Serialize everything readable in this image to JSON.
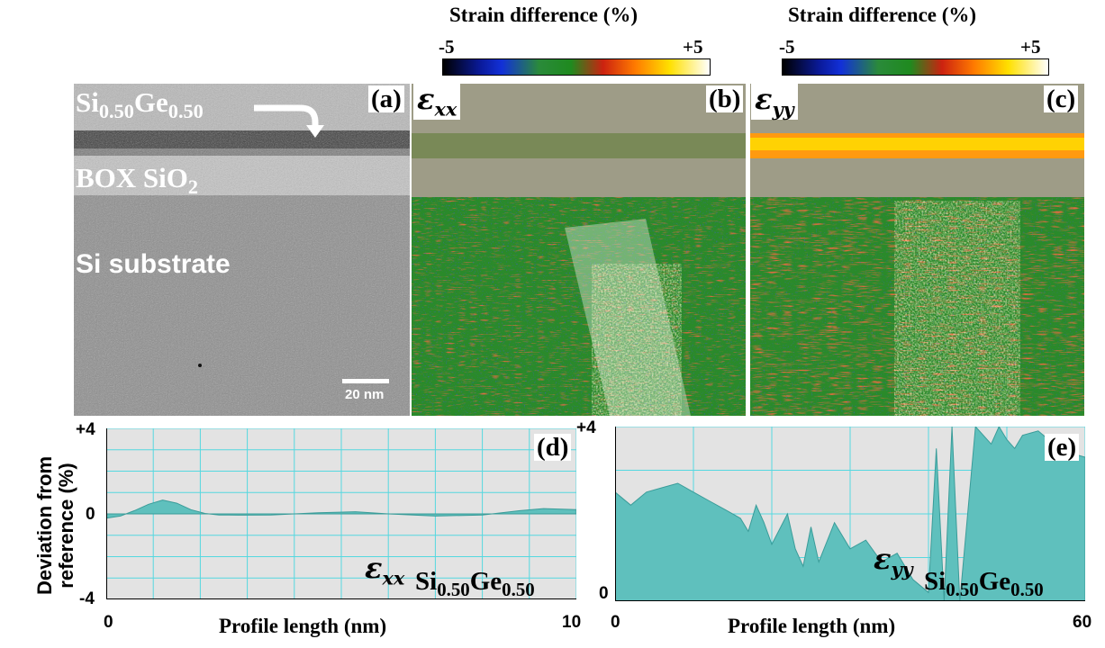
{
  "colorbars": [
    {
      "title": "Strain difference (%)",
      "min_label": "-5",
      "max_label": "+5"
    },
    {
      "title": "Strain difference (%)",
      "min_label": "-5",
      "max_label": "+5"
    }
  ],
  "colors": {
    "profile_fill": "#5fc0bd",
    "grid": "#55d8e0",
    "plot_bg": "#e3e3e3"
  },
  "panels": {
    "a": {
      "label": "(a)",
      "layer_sige_main": "Si",
      "layer_sige_sub1": "0.50",
      "layer_sige_mid": "Ge",
      "layer_sige_sub2": "0.50",
      "layer_box_main": "BOX SiO",
      "layer_box_sub": "2",
      "layer_substrate": "Si substrate",
      "scale_bar": "20 nm"
    },
    "b": {
      "label": "(b)",
      "eps_base": "ε",
      "eps_sub": "xx"
    },
    "c": {
      "label": "(c)",
      "eps_base": "ε",
      "eps_sub": "yy"
    },
    "d": {
      "label": "(d)",
      "y_title_line1": "Deviation from",
      "y_title_line2": "reference (%)",
      "y_top": "+4",
      "y_mid": "0",
      "y_bottom": "-4",
      "x_min": "0",
      "x_max": "10",
      "x_title": "Profile length (nm)",
      "eps_base": "ε",
      "eps_sub": "xx",
      "mat_main": "Si",
      "mat_sub1": "0.50",
      "mat_mid": "Ge",
      "mat_sub2": "0.50"
    },
    "e": {
      "label": "(e)",
      "y_top": "+4",
      "y_bottom": "0",
      "x_min": "0",
      "x_max": "60",
      "x_title": "Profile length (nm)",
      "eps_base": "ε",
      "eps_sub": "yy",
      "mat_main": "Si",
      "mat_sub1": "0.50",
      "mat_mid": "Ge",
      "mat_sub2": "0.50"
    }
  },
  "chart_data": [
    {
      "type": "area",
      "panel": "d",
      "xlim": [
        0,
        10
      ],
      "ylim": [
        -4,
        4
      ],
      "x": [
        0,
        0.3,
        0.6,
        0.9,
        1.2,
        1.5,
        1.8,
        2.1,
        2.4,
        2.8,
        3.5,
        4.5,
        5.3,
        6.0,
        7.0,
        8.0,
        8.8,
        9.3,
        10
      ],
      "y": [
        -0.2,
        -0.1,
        0.15,
        0.45,
        0.65,
        0.5,
        0.2,
        0.02,
        -0.05,
        -0.06,
        -0.05,
        0.05,
        0.1,
        0.0,
        -0.1,
        -0.05,
        0.15,
        0.25,
        0.2
      ]
    },
    {
      "type": "area",
      "panel": "e",
      "xlim": [
        0,
        60
      ],
      "ylim": [
        0,
        4
      ],
      "x": [
        0,
        2,
        4,
        6,
        8,
        10,
        12,
        14,
        16,
        17,
        18,
        19,
        20,
        22,
        23,
        24,
        25,
        26,
        28,
        30,
        32,
        34,
        36,
        38,
        40,
        41,
        42,
        43,
        44,
        46,
        47,
        48,
        49,
        50,
        51,
        52,
        54,
        56,
        58,
        60
      ],
      "y": [
        2.5,
        2.2,
        2.5,
        2.6,
        2.7,
        2.5,
        2.3,
        2.1,
        1.9,
        1.6,
        2.2,
        1.8,
        1.3,
        2.0,
        1.2,
        0.8,
        1.7,
        0.9,
        1.8,
        1.2,
        1.4,
        0.9,
        1.1,
        0.5,
        0.2,
        3.5,
        0.0,
        4.0,
        0.0,
        4.0,
        3.8,
        3.6,
        4.0,
        3.7,
        3.5,
        3.8,
        3.9,
        3.6,
        3.4,
        3.3
      ]
    }
  ]
}
